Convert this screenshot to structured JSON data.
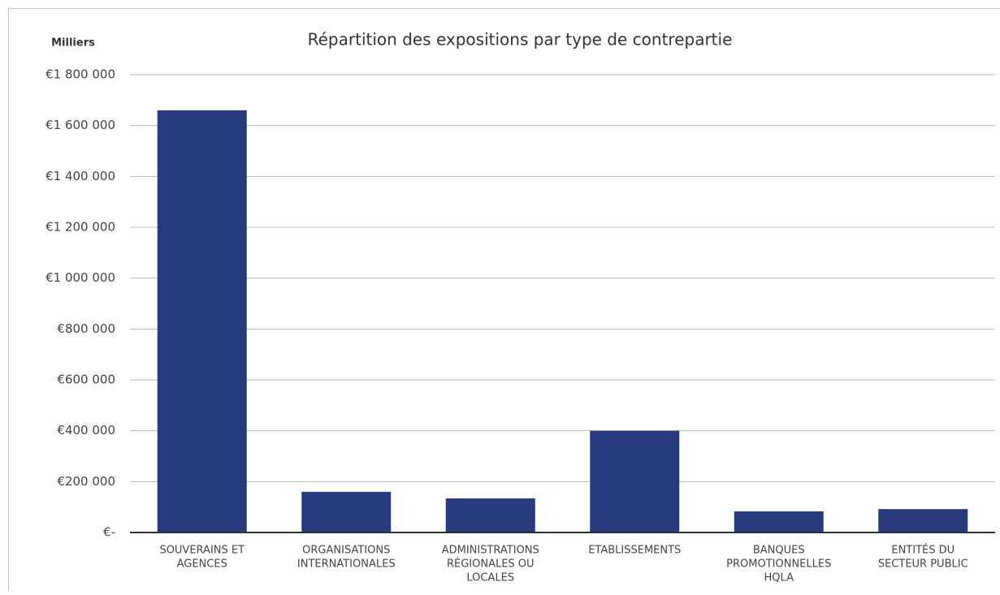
{
  "chart_data": {
    "type": "bar",
    "title": "Répartition des expositions par type de contrepartie",
    "y_axis_label": "Milliers",
    "categories": [
      [
        "SOUVERAINS ET",
        "AGENCES"
      ],
      [
        "ORGANISATIONS",
        "INTERNATIONALES"
      ],
      [
        "ADMINISTRATIONS",
        "RÉGIONALES OU",
        "LOCALES"
      ],
      [
        "ETABLISSEMENTS"
      ],
      [
        "BANQUES",
        "PROMOTIONNELLES",
        "HQLA"
      ],
      [
        "ENTITÉS DU",
        "SECTEUR PUBLIC"
      ]
    ],
    "values": [
      1660000,
      160000,
      134000,
      400000,
      83000,
      92000
    ],
    "color": "#283a7e",
    "ylim": [
      0,
      1800000
    ],
    "yticks": [
      {
        "value": 0,
        "label": "€-"
      },
      {
        "value": 200000,
        "label": "€200 000"
      },
      {
        "value": 400000,
        "label": "€400 000"
      },
      {
        "value": 600000,
        "label": "€600 000"
      },
      {
        "value": 800000,
        "label": "€800 000"
      },
      {
        "value": 1000000,
        "label": "€1 000 000"
      },
      {
        "value": 1200000,
        "label": "€1 200 000"
      },
      {
        "value": 1400000,
        "label": "€1 400 000"
      },
      {
        "value": 1600000,
        "label": "€1 600 000"
      },
      {
        "value": 1800000,
        "label": "€1 800 000"
      }
    ],
    "grid": true
  }
}
